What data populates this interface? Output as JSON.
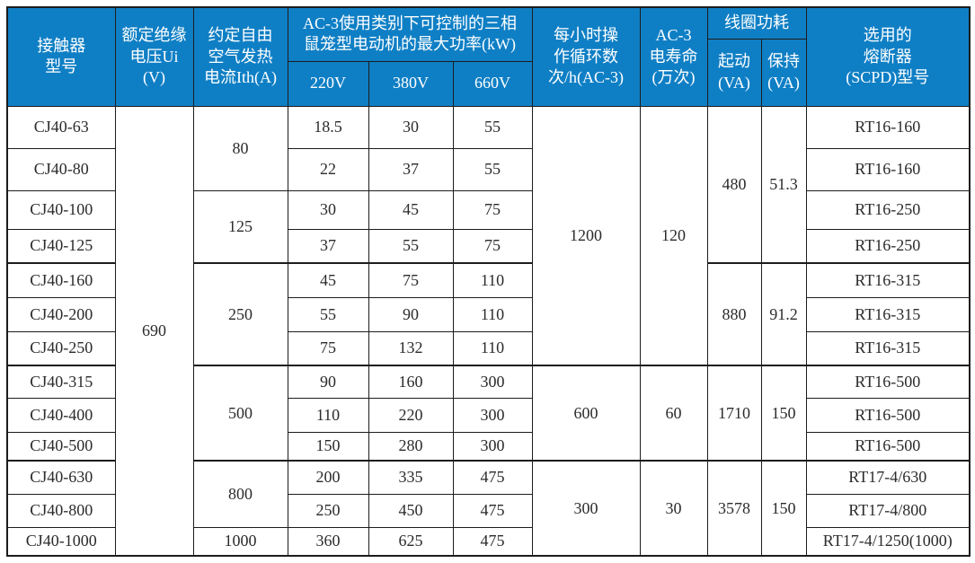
{
  "header": {
    "model": "接触器\n型号",
    "ui": "额定绝缘\n电压Ui (V)",
    "ith": "约定自由\n空气发热\n电流Ith(A)",
    "ac3_power": "AC-3使用类别下可控制的三相\n鼠笼型电动机的最大功率(kW)",
    "v220": "220V",
    "v380": "380V",
    "v660": "660V",
    "cycles": "每小时操\n作循环数\n次/h(AC-3)",
    "life": "AC-3\n电寿命\n(万次)",
    "coil": "线圈功耗",
    "pickup": "起动\n(VA)",
    "hold": "保持\n(VA)",
    "fuse": "选用的\n熔断器\n(SCPD)型号"
  },
  "rows": [
    {
      "model": "CJ40-63",
      "p220": "18.5",
      "p380": "30",
      "p660": "55",
      "fuse": "RT16-160"
    },
    {
      "model": "CJ40-80",
      "p220": "22",
      "p380": "37",
      "p660": "55",
      "fuse": "RT16-160"
    },
    {
      "model": "CJ40-100",
      "p220": "30",
      "p380": "45",
      "p660": "75",
      "fuse": "RT16-250"
    },
    {
      "model": "CJ40-125",
      "p220": "37",
      "p380": "55",
      "p660": "75",
      "fuse": "RT16-250"
    },
    {
      "model": "CJ40-160",
      "p220": "45",
      "p380": "75",
      "p660": "110",
      "fuse": "RT16-315"
    },
    {
      "model": "CJ40-200",
      "p220": "55",
      "p380": "90",
      "p660": "110",
      "fuse": "RT16-315"
    },
    {
      "model": "CJ40-250",
      "p220": "75",
      "p380": "132",
      "p660": "110",
      "fuse": "RT16-315"
    },
    {
      "model": "CJ40-315",
      "p220": "90",
      "p380": "160",
      "p660": "300",
      "fuse": "RT16-500"
    },
    {
      "model": "CJ40-400",
      "p220": "110",
      "p380": "220",
      "p660": "300",
      "fuse": "RT16-500"
    },
    {
      "model": "CJ40-500",
      "p220": "150",
      "p380": "280",
      "p660": "300",
      "fuse": "RT16-500"
    },
    {
      "model": "CJ40-630",
      "p220": "200",
      "p380": "335",
      "p660": "475",
      "fuse": "RT17-4/630"
    },
    {
      "model": "CJ40-800",
      "p220": "250",
      "p380": "450",
      "p660": "475",
      "fuse": "RT17-4/800"
    },
    {
      "model": "CJ40-1000",
      "p220": "360",
      "p380": "625",
      "p660": "475",
      "fuse": "RT17-4/1250(1000)"
    }
  ],
  "spans": {
    "ui": [
      {
        "start": 0,
        "count": 13,
        "value": "690"
      }
    ],
    "ith": [
      {
        "start": 0,
        "count": 2,
        "value": "80"
      },
      {
        "start": 2,
        "count": 2,
        "value": "125"
      },
      {
        "start": 4,
        "count": 3,
        "value": "250"
      },
      {
        "start": 7,
        "count": 3,
        "value": "500"
      },
      {
        "start": 10,
        "count": 2,
        "value": "800"
      },
      {
        "start": 12,
        "count": 1,
        "value": "1000"
      }
    ],
    "cycles": [
      {
        "start": 0,
        "count": 7,
        "value": "1200"
      },
      {
        "start": 7,
        "count": 3,
        "value": "600"
      },
      {
        "start": 10,
        "count": 3,
        "value": "300"
      }
    ],
    "life": [
      {
        "start": 0,
        "count": 7,
        "value": "120"
      },
      {
        "start": 7,
        "count": 3,
        "value": "60"
      },
      {
        "start": 10,
        "count": 3,
        "value": "30"
      }
    ],
    "pickup": [
      {
        "start": 0,
        "count": 4,
        "value": "480"
      },
      {
        "start": 4,
        "count": 3,
        "value": "880"
      },
      {
        "start": 7,
        "count": 3,
        "value": "1710"
      },
      {
        "start": 10,
        "count": 3,
        "value": "3578"
      }
    ],
    "hold": [
      {
        "start": 0,
        "count": 4,
        "value": "51.3"
      },
      {
        "start": 4,
        "count": 3,
        "value": "91.2"
      },
      {
        "start": 7,
        "count": 3,
        "value": "150"
      },
      {
        "start": 10,
        "count": 3,
        "value": "150"
      }
    ]
  },
  "colors": {
    "header_bg": "#0f7fc5",
    "header_text": "#ffffff",
    "border": "#1c1c1c",
    "body_text": "#2b2b2b"
  }
}
